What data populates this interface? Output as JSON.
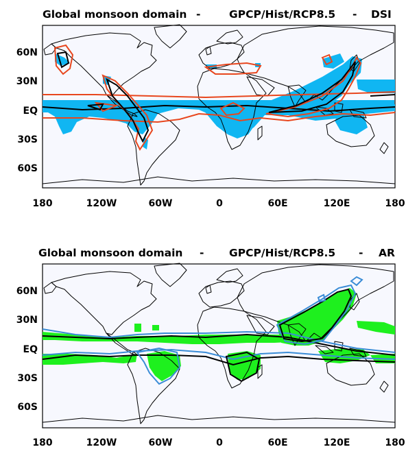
{
  "panels": [
    {
      "title_left": "Global monsoon domain",
      "title_sep1": "-",
      "title_mid": "GPCP/Hist/RCP8.5",
      "title_sep2": "-",
      "title_right": "DSI",
      "fill_color": "#10B6F2",
      "contour_colors": [
        "#E8461D",
        "#000000"
      ]
    },
    {
      "title_left": "Global monsoon domain",
      "title_sep1": "-",
      "title_mid": "GPCP/Hist/RCP8.5",
      "title_sep2": "-",
      "title_right": "AR",
      "fill_color": "#1EF01E",
      "contour_colors": [
        "#3A8CD6",
        "#000000"
      ]
    }
  ],
  "lat_ticks": [
    "60N",
    "30N",
    "EQ",
    "30S",
    "60S"
  ],
  "lon_ticks": [
    "180",
    "120W",
    "60W",
    "0",
    "60E",
    "120E",
    "180"
  ],
  "ocean_color": "#F7F8FE"
}
